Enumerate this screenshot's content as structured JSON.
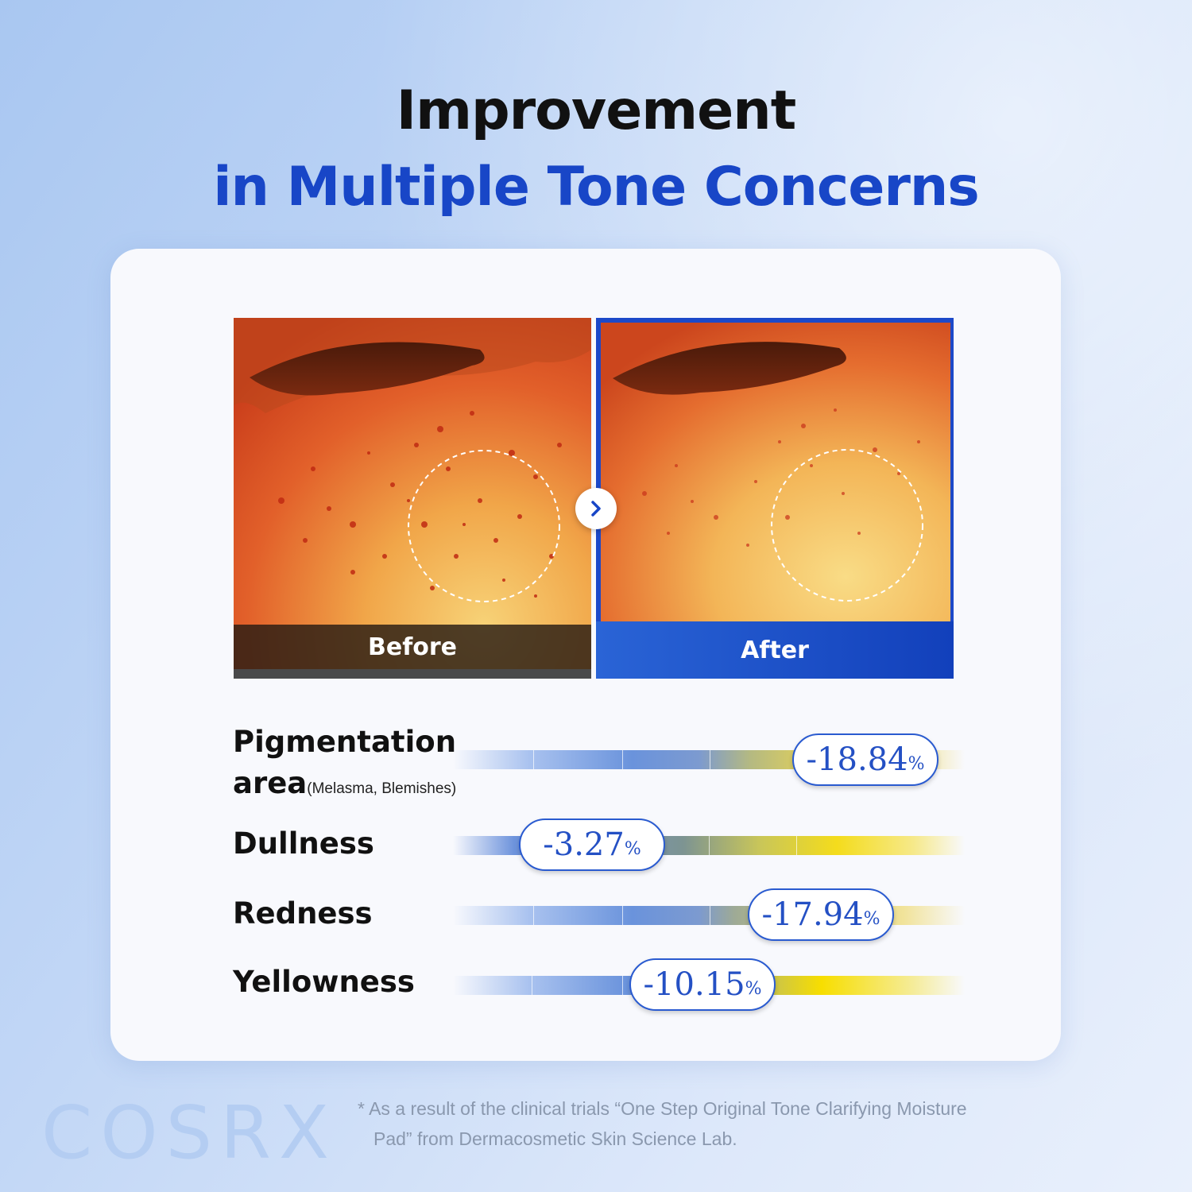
{
  "heading": {
    "line1": "Improvement",
    "line2": "in Multiple Tone Concerns"
  },
  "colors": {
    "accent": "#1846c7",
    "pill_border": "#2a5bd0",
    "after_panel": "#1c49c9"
  },
  "comparison": {
    "before_label": "Before",
    "after_label": "After",
    "arrow_icon": "chevron-right-icon"
  },
  "metrics": [
    {
      "label": "Pigmentation",
      "label_line2": "area",
      "sub": "(Melasma, Blemishes)",
      "value": "-18.84",
      "unit": "%"
    },
    {
      "label": "Dullness",
      "value": "-3.27",
      "unit": "%"
    },
    {
      "label": "Redness",
      "value": "-17.94",
      "unit": "%"
    },
    {
      "label": "Yellowness",
      "value": "-10.15",
      "unit": "%"
    }
  ],
  "brand": "COSRX",
  "footnote": {
    "line1": "* As a result of the clinical trials “One Step Original Tone Clarifying Moisture",
    "line2": "Pad” from Dermacosmetic Skin Science Lab."
  }
}
